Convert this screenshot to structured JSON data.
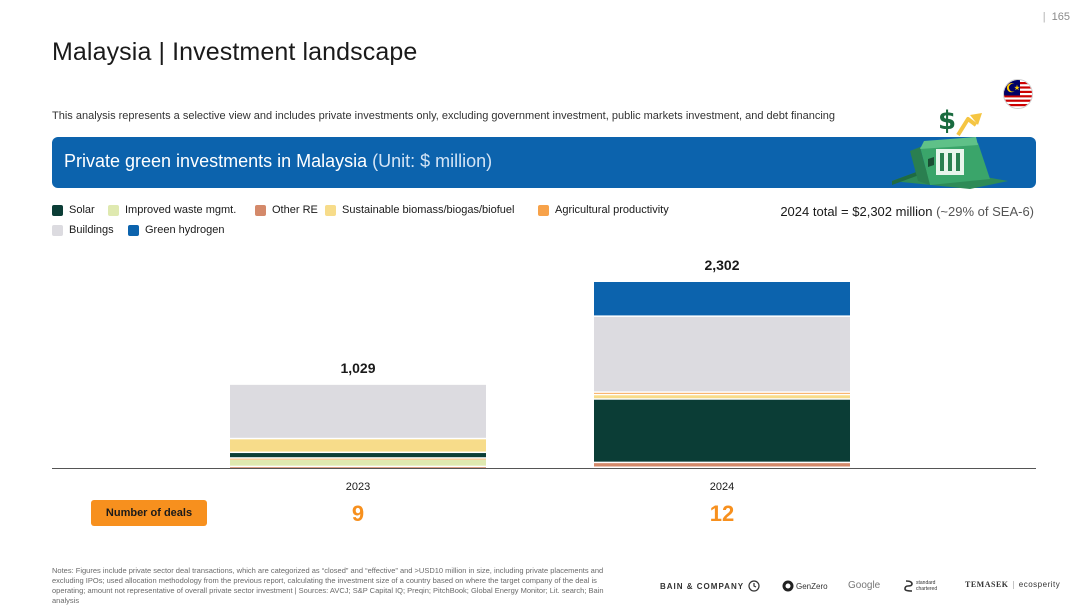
{
  "page": {
    "number": "165"
  },
  "header": {
    "title": "Malaysia | Investment landscape",
    "subtitle": "This analysis represents a selective view and includes private investments only, excluding government investment, public markets investment, and debt financing"
  },
  "banner": {
    "title": "Private green investments in Malaysia",
    "unit": "(Unit: $ million)"
  },
  "total": {
    "label": "2024 total = $2,302 million",
    "share": "(~29% of SEA-6)"
  },
  "legend": [
    {
      "label": "Solar",
      "color": "#0b3d36"
    },
    {
      "label": "Improved waste mgmt.",
      "color": "#dfe9b0"
    },
    {
      "label": "Other RE",
      "color": "#d4896a"
    },
    {
      "label": "Sustainable biomass/biogas/biofuel",
      "color": "#f7dc8a"
    },
    {
      "label": "Agricultural productivity",
      "color": "#f7a24a"
    },
    {
      "label": "Buildings",
      "color": "#dcdbe0"
    },
    {
      "label": "Green hydrogen",
      "color": "#0c63ad"
    }
  ],
  "chart_data": {
    "type": "bar",
    "stacked": true,
    "title": "Private green investments in Malaysia",
    "unit": "$ million",
    "categories": [
      "2023",
      "2024"
    ],
    "totals": [
      1029,
      2302
    ],
    "total_labels": [
      "1,029",
      "2,302"
    ],
    "ylim": [
      0,
      2302
    ],
    "series": [
      {
        "name": "Other RE",
        "color": "#d4896a",
        "values": [
          10,
          60
        ]
      },
      {
        "name": "Improved waste mgmt.",
        "color": "#dfe9b0",
        "values": [
          90,
          0
        ]
      },
      {
        "name": "Agricultural productivity",
        "color": "#f7a24a",
        "values": [
          15,
          0
        ]
      },
      {
        "name": "Solar",
        "color": "#0b3d36",
        "values": [
          70,
          785
        ]
      },
      {
        "name": "Sustainable biomass/biogas/biofuel",
        "color": "#f7dc8a",
        "values": [
          170,
          55
        ]
      },
      {
        "name": "Agricultural productivity ",
        "color": "#f7a24a",
        "values": [
          0,
          30
        ]
      },
      {
        "name": "Buildings",
        "color": "#dcdbe0",
        "values": [
          674,
          940
        ]
      },
      {
        "name": "Green hydrogen",
        "color": "#0c63ad",
        "values": [
          0,
          432
        ]
      }
    ]
  },
  "deals": {
    "label": "Number of deals",
    "counts": [
      "9",
      "12"
    ]
  },
  "notes": "Notes: Figures include private sector deal transactions, which are categorized as “closed” and “effective” and >USD10 million in size, including private placements and excluding IPOs; used allocation methodology from the previous report, calculating the investment size of a country based on where the target company of the deal is operating; amount not representative of overall private sector investment | Sources: AVCJ; S&P Capital IQ; Preqin; PitchBook; Global Energy Monitor; Lit. search; Bain analysis",
  "logos": {
    "bain": "BAIN & COMPANY",
    "genzero": "GenZero",
    "google": "Google",
    "standard_chartered": "standard chartered",
    "temasek": "TEMASEK",
    "ecosperity": "ecosperity"
  }
}
